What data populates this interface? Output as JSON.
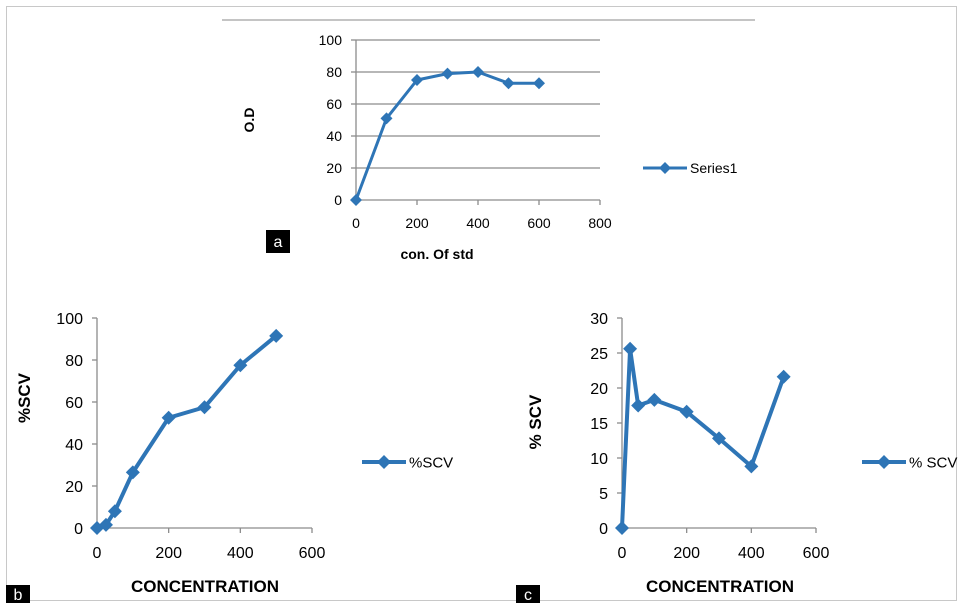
{
  "panels": {
    "a": "a",
    "b": "b",
    "c": "c"
  },
  "colors": {
    "series": "#2e75b6",
    "grid": "#8c8c8c",
    "axis": "#8c8c8c",
    "tag_bg": "#000000",
    "border": "#c8c8c8"
  },
  "chart_data": [
    {
      "id": "a",
      "type": "line",
      "title": "",
      "xlabel": "con. Of  std",
      "ylabel": "O.D",
      "xlim": [
        0,
        800
      ],
      "ylim": [
        0,
        100
      ],
      "xticks": [
        0,
        200,
        400,
        600,
        800
      ],
      "yticks": [
        0,
        20,
        40,
        60,
        80,
        100
      ],
      "grid": true,
      "legend": "right",
      "series": [
        {
          "name": "Series1",
          "x": [
            0,
            100,
            200,
            300,
            400,
            500,
            600
          ],
          "y": [
            0,
            51,
            75,
            79,
            80,
            73,
            73
          ]
        }
      ]
    },
    {
      "id": "b",
      "type": "line",
      "title": "",
      "xlabel": "CONCENTRATION",
      "ylabel": "%SCV",
      "xlim": [
        0,
        600
      ],
      "ylim": [
        0,
        100
      ],
      "xticks": [
        0,
        200,
        400,
        600
      ],
      "yticks": [
        0,
        20,
        40,
        60,
        80,
        100
      ],
      "grid": false,
      "legend": "right",
      "series": [
        {
          "name": "%SCV",
          "x": [
            0,
            25,
            50,
            100,
            200,
            300,
            400,
            500
          ],
          "y": [
            0,
            1.5,
            8,
            26.5,
            52.5,
            57.5,
            77.5,
            91.5
          ]
        }
      ]
    },
    {
      "id": "c",
      "type": "line",
      "title": "",
      "xlabel": "CONCENTRATION",
      "ylabel": "% SCV",
      "xlim": [
        0,
        600
      ],
      "ylim": [
        0,
        30
      ],
      "xticks": [
        0,
        200,
        400,
        600
      ],
      "yticks": [
        0,
        5,
        10,
        15,
        20,
        25,
        30
      ],
      "grid": false,
      "legend": "right",
      "series": [
        {
          "name": "% SCV",
          "x": [
            0,
            25,
            50,
            100,
            200,
            300,
            400,
            500
          ],
          "y": [
            0,
            25.6,
            17.5,
            18.3,
            16.6,
            12.8,
            8.8,
            21.6
          ]
        }
      ]
    }
  ]
}
